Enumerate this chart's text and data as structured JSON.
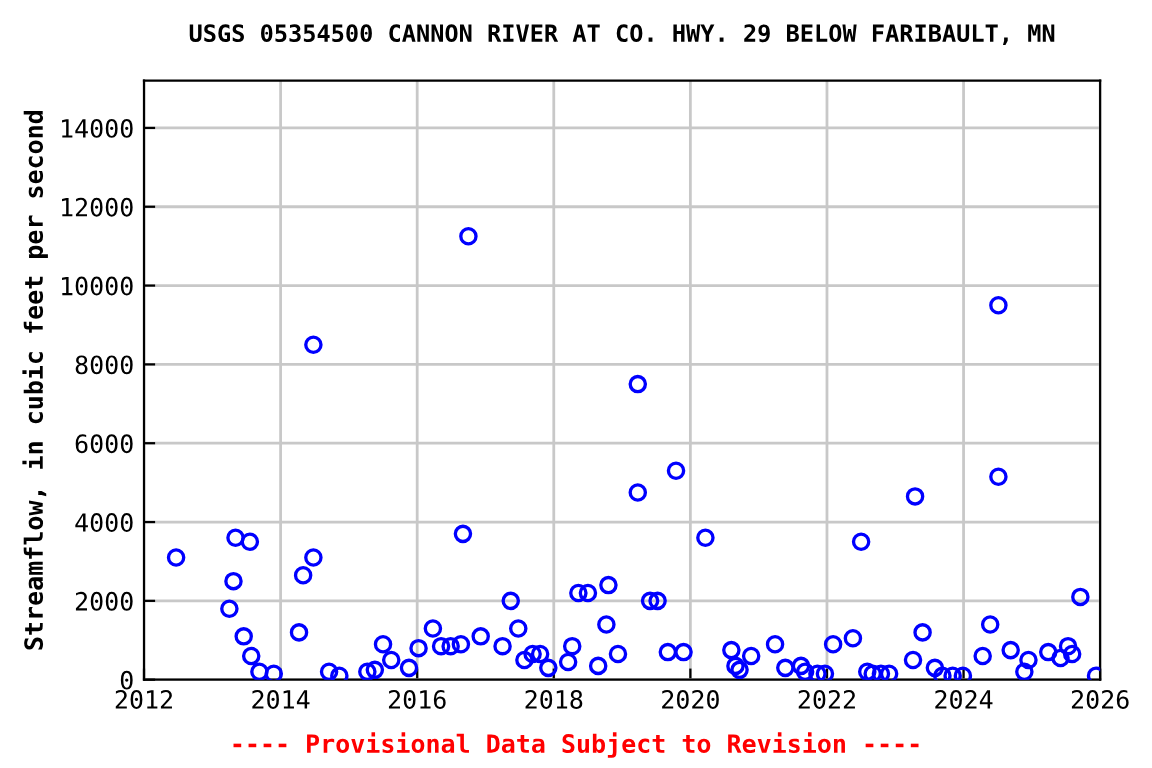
{
  "chart_data": {
    "type": "scatter",
    "title": "USGS 05354500 CANNON RIVER AT CO. HWY. 29 BELOW FARIBAULT, MN",
    "ylabel": "Streamflow, in cubic feet per second",
    "x": [
      2012.47,
      2013.25,
      2013.31,
      2013.34,
      2013.55,
      2013.46,
      2013.57,
      2013.69,
      2013.9,
      2014.27,
      2014.33,
      2014.48,
      2014.48,
      2014.71,
      2014.86,
      2015.27,
      2015.38,
      2015.5,
      2015.62,
      2015.88,
      2016.02,
      2016.23,
      2016.35,
      2016.49,
      2016.64,
      2016.67,
      2016.75,
      2016.93,
      2017.25,
      2017.37,
      2017.48,
      2017.57,
      2017.69,
      2017.8,
      2017.92,
      2018.21,
      2018.27,
      2018.36,
      2018.5,
      2018.65,
      2018.77,
      2018.8,
      2018.94,
      2019.23,
      2019.23,
      2019.41,
      2019.52,
      2019.67,
      2019.79,
      2019.9,
      2020.22,
      2020.6,
      2020.66,
      2020.72,
      2020.89,
      2021.24,
      2021.39,
      2021.62,
      2021.68,
      2021.86,
      2021.97,
      2022.09,
      2022.38,
      2022.5,
      2022.59,
      2022.67,
      2022.79,
      2022.91,
      2023.26,
      2023.29,
      2023.4,
      2023.58,
      2023.69,
      2023.84,
      2023.99,
      2024.28,
      2024.39,
      2024.51,
      2024.51,
      2024.69,
      2024.89,
      2024.95,
      2025.24,
      2025.42,
      2025.53,
      2025.59,
      2025.71,
      2025.94
    ],
    "values": [
      3100,
      1800,
      2500,
      3600,
      3500,
      1100,
      600,
      200,
      150,
      1200,
      2650,
      3100,
      8500,
      200,
      100,
      200,
      250,
      900,
      500,
      300,
      800,
      1300,
      850,
      850,
      900,
      3700,
      11250,
      1100,
      850,
      2000,
      1300,
      500,
      650,
      650,
      300,
      450,
      850,
      2200,
      2200,
      350,
      1400,
      2400,
      650,
      7500,
      4750,
      2000,
      2000,
      700,
      5300,
      700,
      3600,
      750,
      350,
      250,
      600,
      900,
      300,
      350,
      200,
      150,
      150,
      900,
      1050,
      3500,
      200,
      150,
      150,
      150,
      500,
      4650,
      1200,
      300,
      100,
      100,
      100,
      600,
      1400,
      9500,
      5150,
      750,
      200,
      500,
      700,
      550,
      850,
      650,
      2100,
      100
    ],
    "color": "#0000ff",
    "marker": "circle",
    "xlim": [
      2012,
      2026
    ],
    "xticks": [
      2012,
      2014,
      2016,
      2018,
      2020,
      2022,
      2024,
      2026
    ],
    "ylim": [
      0,
      15200
    ],
    "yticks": [
      0,
      2000,
      4000,
      6000,
      8000,
      10000,
      12000,
      14000
    ],
    "grid": true,
    "annotations": [
      "---- Provisional Data Subject to Revision ----"
    ]
  }
}
